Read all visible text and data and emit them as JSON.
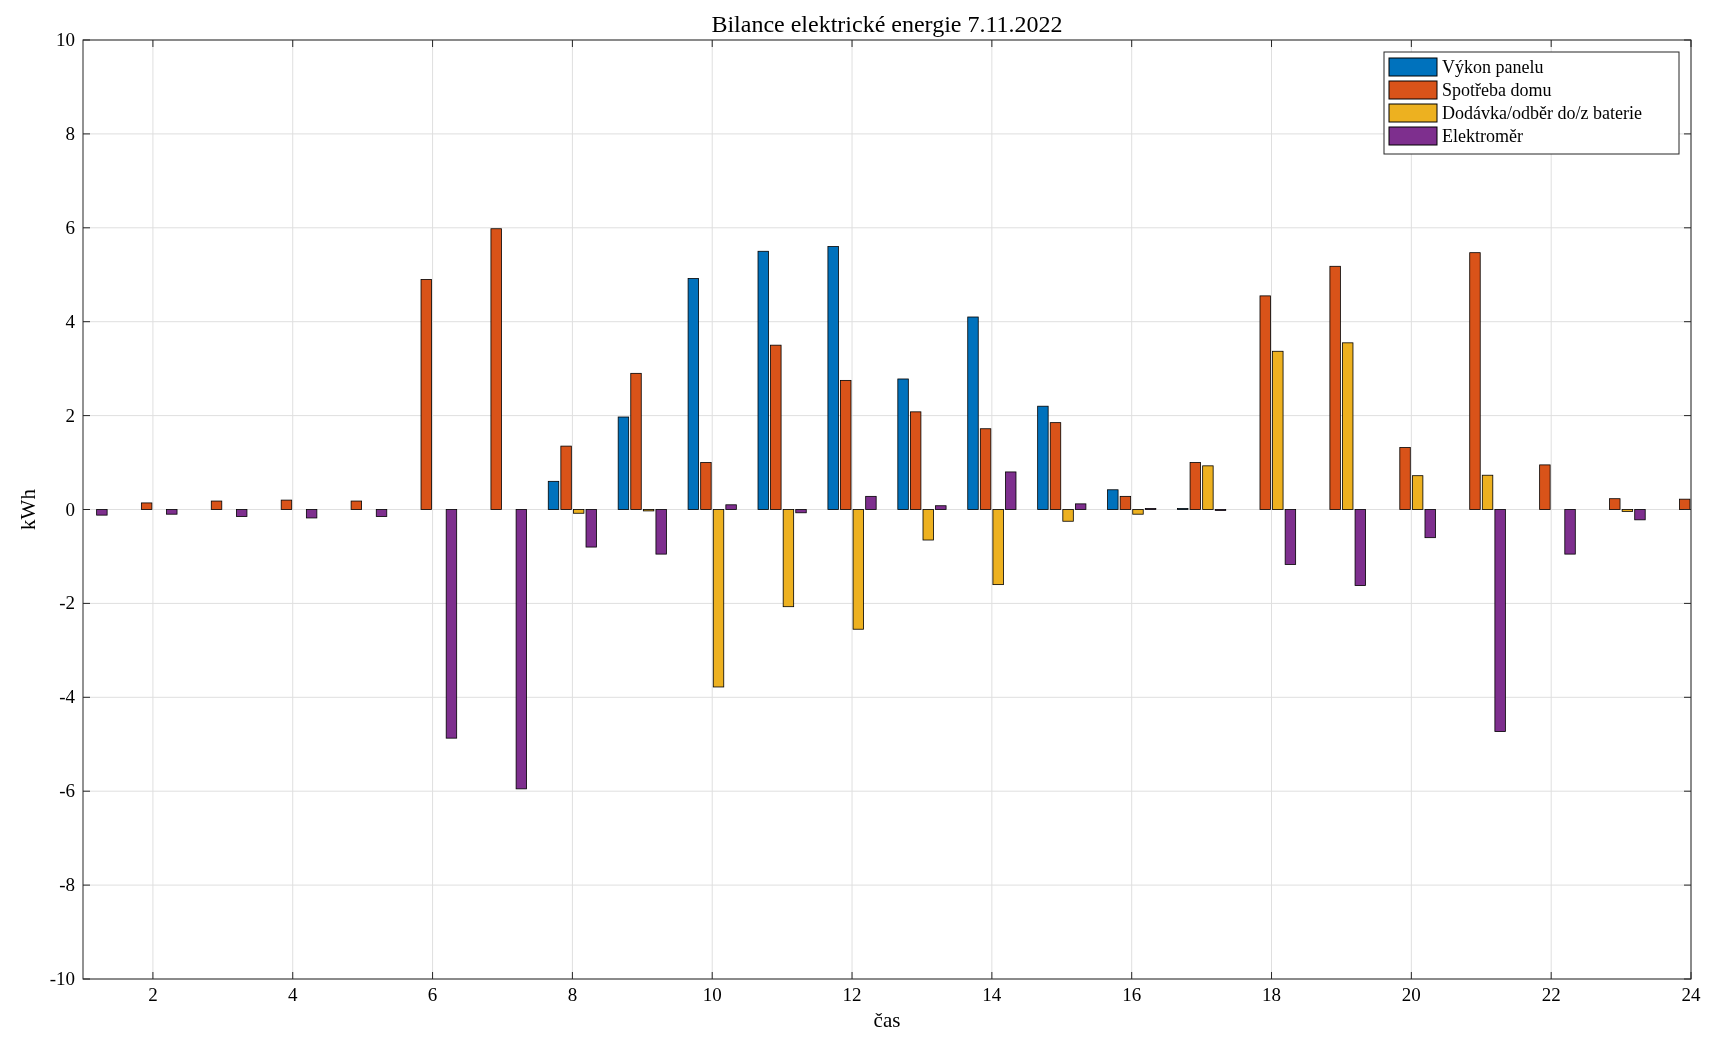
{
  "chart_data": {
    "type": "bar",
    "title": "Bilance elektrické energie 7.11.2022",
    "xlabel": "čas",
    "ylabel": "kWh",
    "x": [
      1,
      2,
      3,
      4,
      5,
      6,
      7,
      8,
      9,
      10,
      11,
      12,
      13,
      14,
      15,
      16,
      17,
      18,
      19,
      20,
      21,
      22,
      23,
      24
    ],
    "xlim": [
      1,
      24
    ],
    "xticks": [
      2,
      4,
      6,
      8,
      10,
      12,
      14,
      16,
      18,
      20,
      22,
      24
    ],
    "ylim": [
      -10,
      10
    ],
    "yticks": [
      -10,
      -8,
      -6,
      -4,
      -2,
      0,
      2,
      4,
      6,
      8,
      10
    ],
    "grid": true,
    "legend": "top right",
    "series": [
      {
        "name": "Výkon panelu",
        "color": "#0072bd",
        "values": [
          null,
          0,
          0,
          0,
          0,
          0,
          0,
          0.6,
          1.97,
          4.92,
          5.5,
          5.6,
          2.78,
          4.1,
          2.2,
          0.42,
          0.02,
          0,
          0,
          0,
          0,
          0,
          0,
          0
        ]
      },
      {
        "name": "Spotřeba domu",
        "color": "#d95319",
        "values": [
          null,
          0.14,
          0.18,
          0.2,
          0.18,
          4.9,
          5.98,
          1.35,
          2.9,
          1.0,
          3.5,
          2.75,
          2.08,
          1.72,
          1.85,
          0.28,
          1.0,
          4.55,
          5.18,
          1.32,
          5.47,
          0.95,
          0.23,
          0.22
        ]
      },
      {
        "name": "Dodávka/odběr do/z baterie",
        "color": "#edb120",
        "values": [
          0,
          0,
          0,
          0,
          0,
          0,
          0,
          -0.08,
          -0.03,
          -3.78,
          -2.07,
          -2.55,
          -0.65,
          -1.6,
          -0.25,
          -0.1,
          0.93,
          3.37,
          3.55,
          0.72,
          0.73,
          0,
          -0.04,
          null
        ]
      },
      {
        "name": "Elektroměr",
        "color": "#7e2f8e",
        "values": [
          -0.12,
          -0.1,
          -0.15,
          -0.18,
          -0.15,
          -4.87,
          -5.95,
          -0.8,
          -0.95,
          0.1,
          -0.07,
          0.28,
          0.08,
          0.8,
          0.12,
          0.02,
          -0.02,
          -1.17,
          -1.62,
          -0.6,
          -4.73,
          -0.95,
          -0.22,
          null
        ]
      }
    ]
  }
}
